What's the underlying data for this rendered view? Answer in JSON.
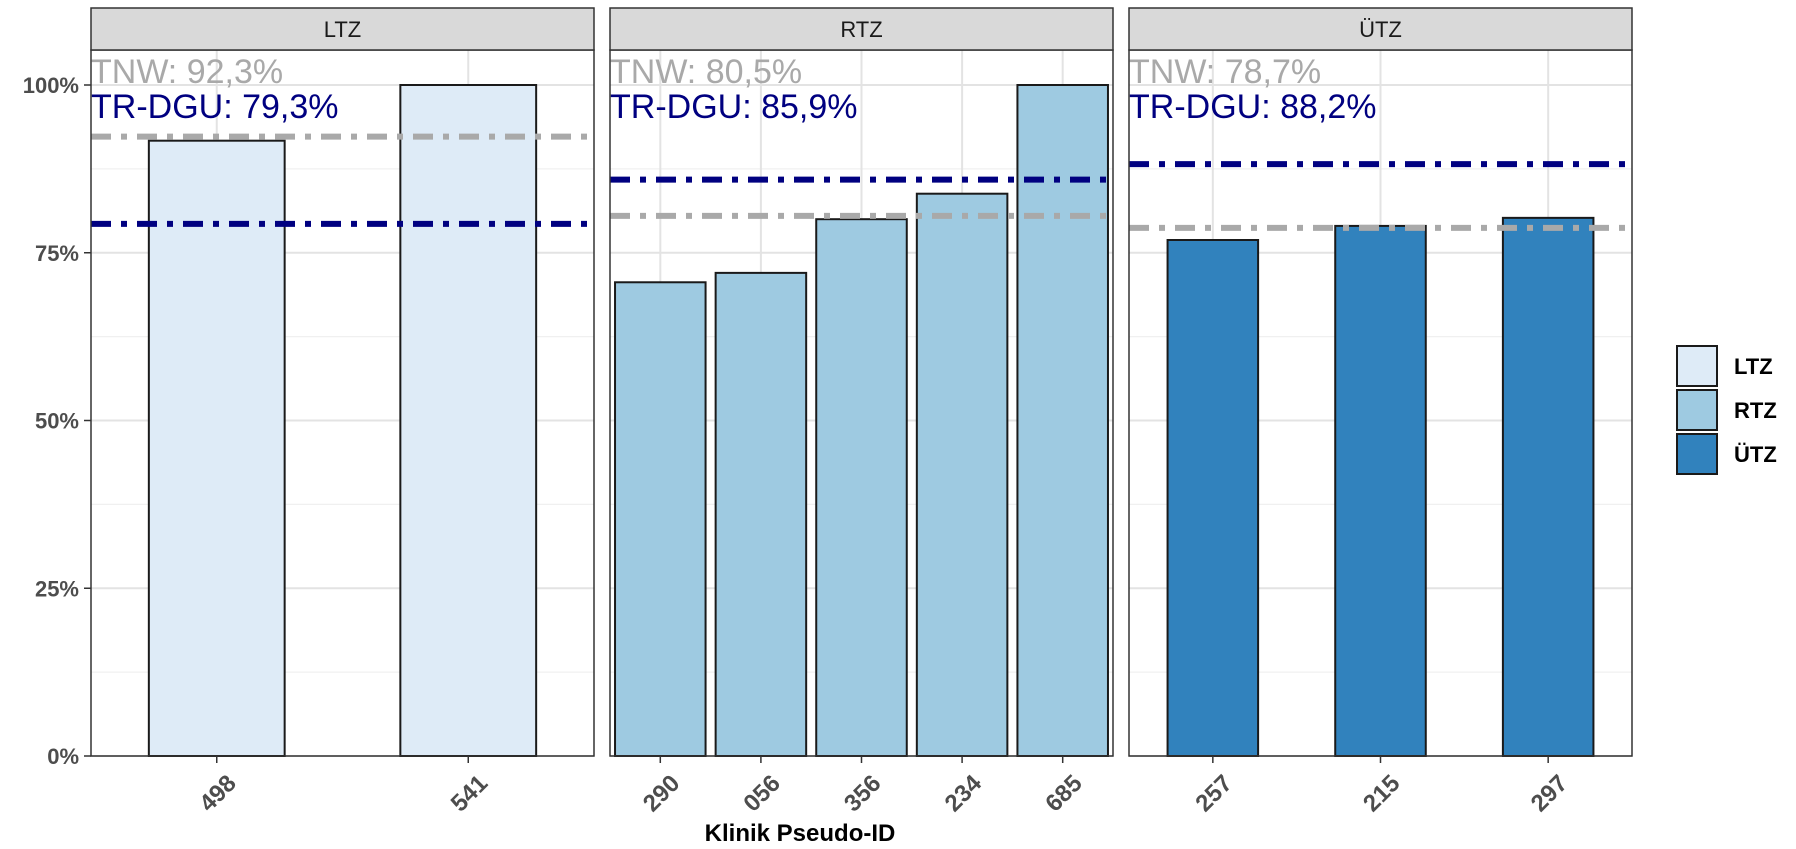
{
  "chart_data": {
    "type": "bar",
    "layout": "faceted",
    "xlabel": "Klinik Pseudo-ID",
    "ylabel": "",
    "ylim": [
      0,
      1.0
    ],
    "y_ticks": [
      0,
      0.25,
      0.5,
      0.75,
      1.0
    ],
    "y_tick_labels": [
      "0%",
      "25%",
      "50%",
      "75%",
      "100%"
    ],
    "grid": true,
    "legend_position": "right",
    "colors": {
      "LTZ": "#deebf7",
      "RTZ": "#9ecae1",
      "ÜTZ": "#3182bd",
      "TNW": "#a9a9a9",
      "TR-DGU": "#000080",
      "bar_border": "#1a1a1a",
      "strip_bg": "#d9d9d9"
    },
    "legend": [
      {
        "label": "LTZ",
        "color": "#deebf7"
      },
      {
        "label": "RTZ",
        "color": "#9ecae1"
      },
      {
        "label": "ÜTZ",
        "color": "#3182bd"
      }
    ],
    "panels": [
      {
        "facet": "LTZ",
        "categories": [
          "498",
          "541"
        ],
        "values": [
          0.917,
          1.0
        ],
        "tnw_value": 0.923,
        "trdgu_value": 0.793,
        "tnw_label": "TNW: 92,3%",
        "trdgu_label": "TR-DGU: 79,3%"
      },
      {
        "facet": "RTZ",
        "categories": [
          "290",
          "056",
          "356",
          "234",
          "685"
        ],
        "values": [
          0.706,
          0.72,
          0.8,
          0.838,
          1.0
        ],
        "tnw_value": 0.805,
        "trdgu_value": 0.859,
        "tnw_label": "TNW: 80,5%",
        "trdgu_label": "TR-DGU: 85,9%"
      },
      {
        "facet": "ÜTZ",
        "categories": [
          "257",
          "215",
          "297"
        ],
        "values": [
          0.769,
          0.79,
          0.802
        ],
        "tnw_value": 0.787,
        "trdgu_value": 0.882,
        "tnw_label": "TNW: 78,7%",
        "trdgu_label": "TR-DGU: 88,2%"
      }
    ]
  }
}
